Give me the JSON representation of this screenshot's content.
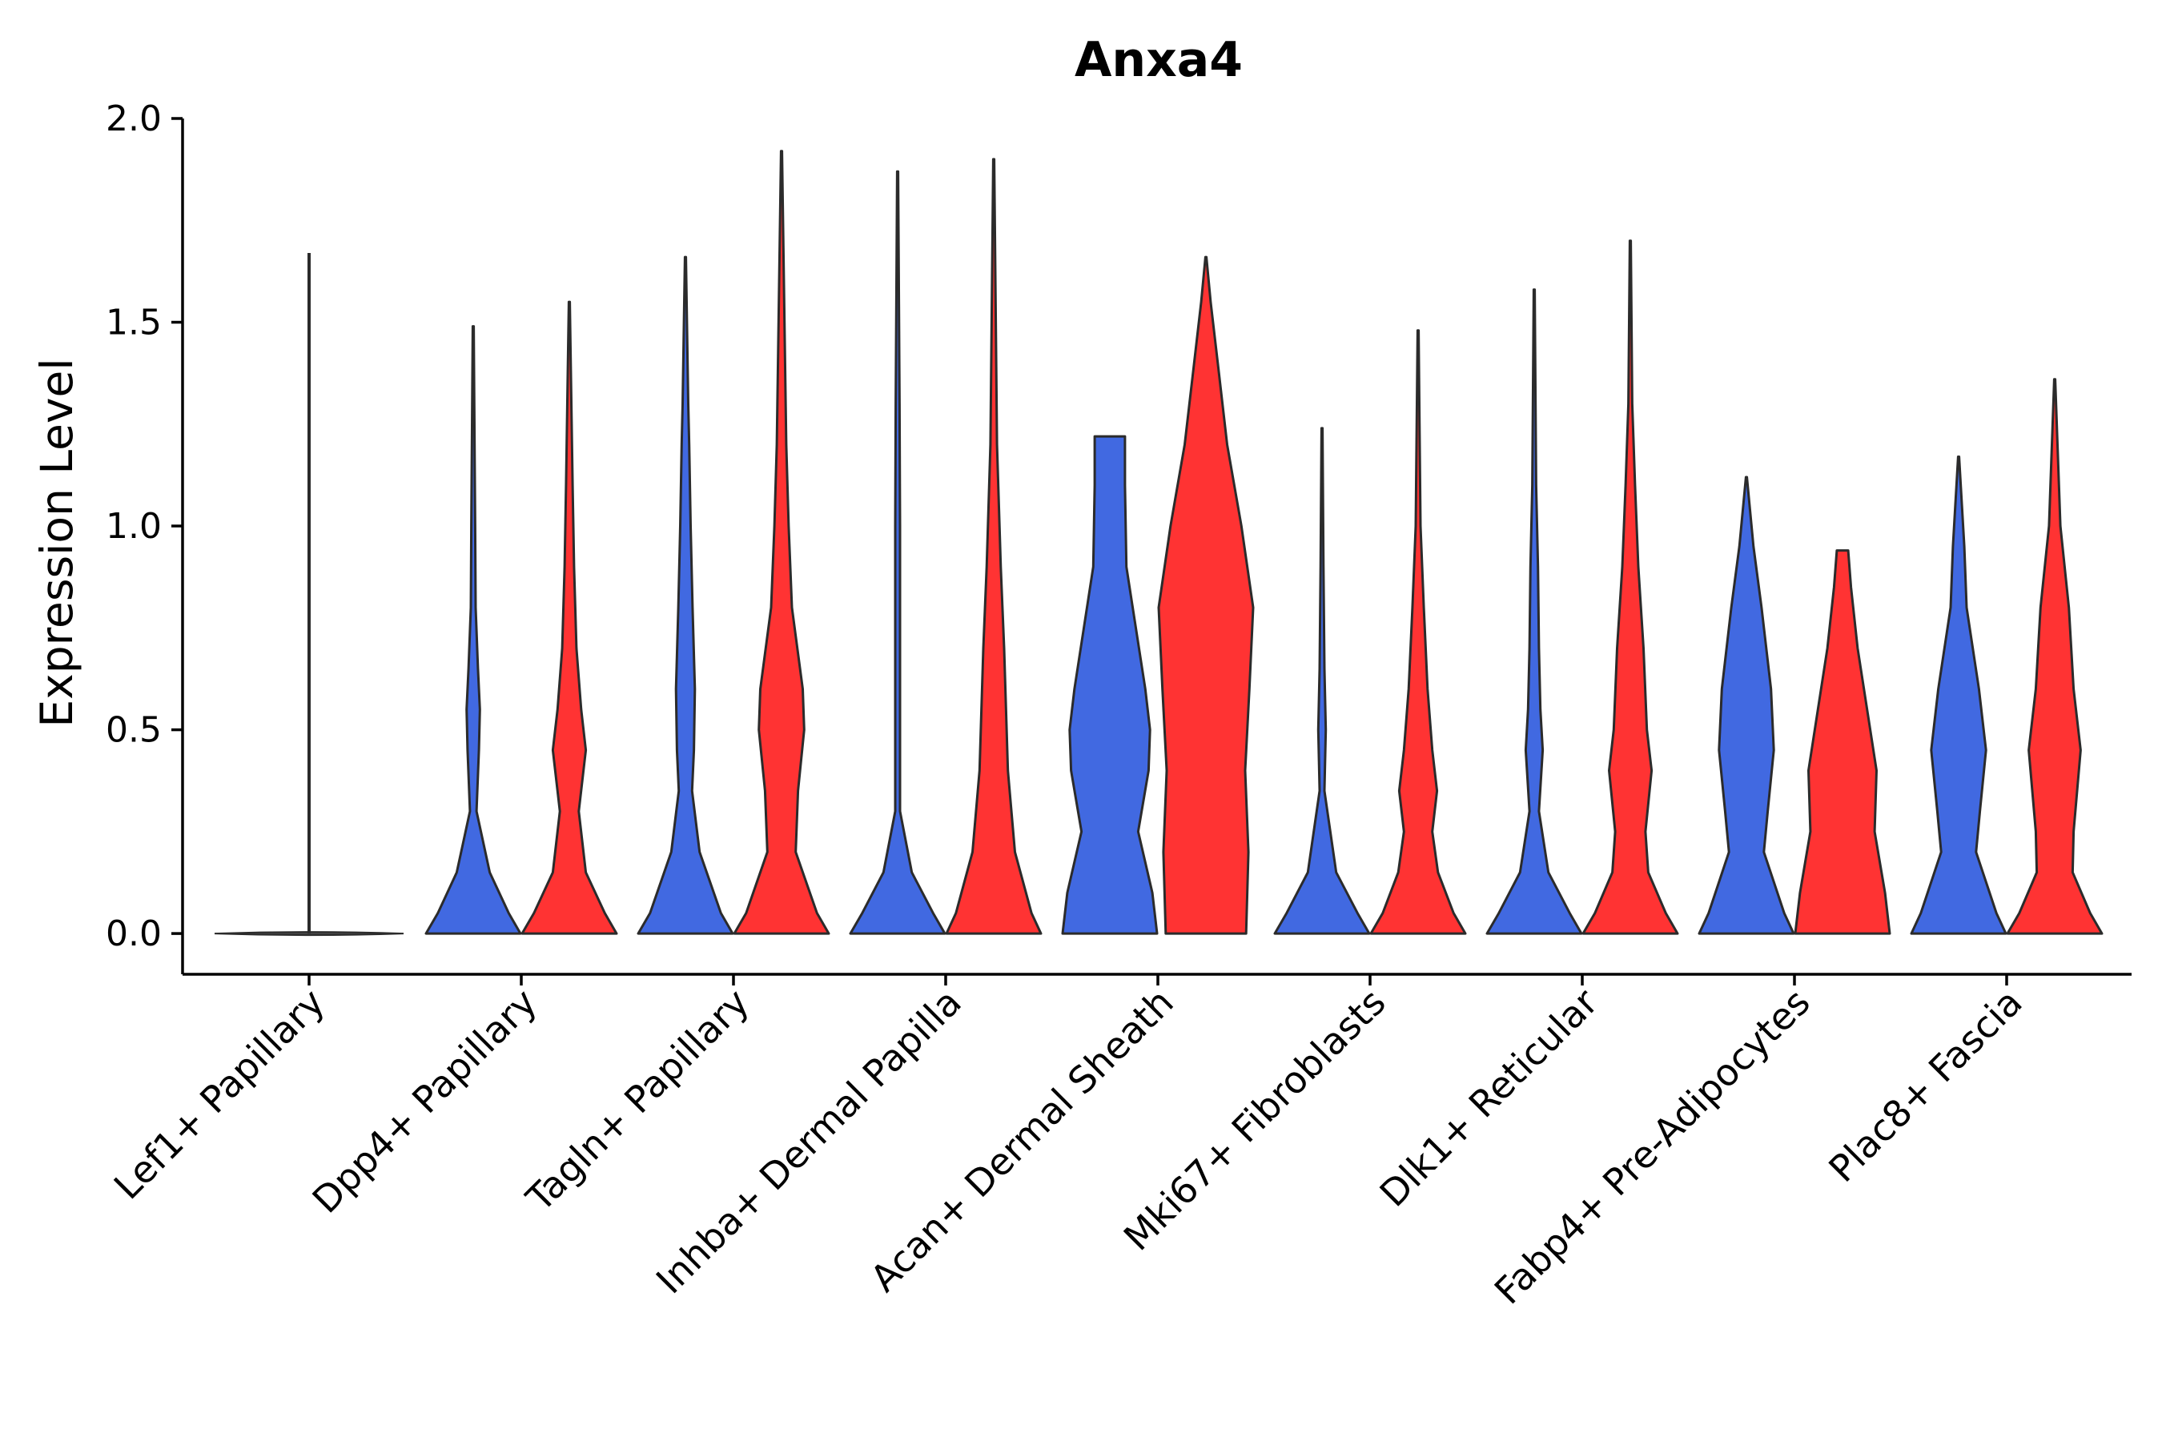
{
  "chart_data": {
    "type": "violin",
    "title": "Anxa4",
    "xlabel": "",
    "ylabel": "Expression Level",
    "ylim": [
      -0.1,
      2.0
    ],
    "yticks": [
      "0.0",
      "0.5",
      "1.0",
      "1.5",
      "2.0"
    ],
    "ytick_values": [
      0,
      0.5,
      1.0,
      1.5,
      2.0
    ],
    "grid": false,
    "colors": {
      "blue": "#4169E1",
      "red": "#FF3333",
      "outline": "#2b2b2b"
    },
    "categories": [
      "Lef1+ Papillary",
      "Dpp4+ Papillary",
      "Tagln+ Papillary",
      "Inhba+ Dermal Papilla",
      "Acan+ Dermal Sheath",
      "Mki67+ Fibroblasts",
      "Dlk1+ Reticular",
      "Fabp4+ Pre-Adipocytes",
      "Plac8+ Fascia"
    ],
    "series": [
      {
        "name": "blue",
        "color": "#4169E1",
        "max": [
          null,
          1.49,
          1.66,
          1.87,
          1.22,
          1.24,
          1.58,
          1.12,
          1.17
        ],
        "profiles": [
          null,
          [
            [
              0,
              1
            ],
            [
              0.05,
              0.75
            ],
            [
              0.15,
              0.35
            ],
            [
              0.3,
              0.07
            ],
            [
              0.45,
              0.12
            ],
            [
              0.55,
              0.14
            ],
            [
              0.65,
              0.1
            ],
            [
              0.8,
              0.05
            ],
            [
              1.0,
              0.04
            ],
            [
              1.49,
              0
            ]
          ],
          [
            [
              0,
              1
            ],
            [
              0.05,
              0.75
            ],
            [
              0.2,
              0.3
            ],
            [
              0.35,
              0.14
            ],
            [
              0.45,
              0.18
            ],
            [
              0.6,
              0.2
            ],
            [
              0.8,
              0.15
            ],
            [
              1.0,
              0.11
            ],
            [
              1.2,
              0.08
            ],
            [
              1.3,
              0.06
            ],
            [
              1.66,
              0
            ]
          ],
          [
            [
              0,
              1
            ],
            [
              0.05,
              0.75
            ],
            [
              0.15,
              0.3
            ],
            [
              0.3,
              0.05
            ],
            [
              0.6,
              0.05
            ],
            [
              1.0,
              0.05
            ],
            [
              1.3,
              0.04
            ],
            [
              1.87,
              0
            ]
          ],
          [
            [
              0,
              1
            ],
            [
              0.1,
              0.9
            ],
            [
              0.25,
              0.6
            ],
            [
              0.4,
              0.82
            ],
            [
              0.5,
              0.85
            ],
            [
              0.6,
              0.75
            ],
            [
              0.9,
              0.35
            ],
            [
              1.1,
              0.32
            ],
            [
              1.22,
              0.32
            ]
          ],
          [
            [
              0,
              1
            ],
            [
              0.05,
              0.75
            ],
            [
              0.15,
              0.3
            ],
            [
              0.35,
              0.05
            ],
            [
              0.5,
              0.08
            ],
            [
              0.65,
              0.05
            ],
            [
              0.9,
              0.03
            ],
            [
              1.24,
              0
            ]
          ],
          [
            [
              0,
              1
            ],
            [
              0.05,
              0.75
            ],
            [
              0.15,
              0.3
            ],
            [
              0.3,
              0.1
            ],
            [
              0.45,
              0.18
            ],
            [
              0.55,
              0.13
            ],
            [
              0.7,
              0.1
            ],
            [
              0.9,
              0.08
            ],
            [
              1.1,
              0.04
            ],
            [
              1.58,
              0
            ]
          ],
          [
            [
              0,
              1
            ],
            [
              0.05,
              0.8
            ],
            [
              0.2,
              0.37
            ],
            [
              0.3,
              0.45
            ],
            [
              0.45,
              0.58
            ],
            [
              0.6,
              0.52
            ],
            [
              0.8,
              0.32
            ],
            [
              0.95,
              0.15
            ],
            [
              1.12,
              0
            ]
          ],
          [
            [
              0,
              1
            ],
            [
              0.05,
              0.8
            ],
            [
              0.2,
              0.37
            ],
            [
              0.3,
              0.45
            ],
            [
              0.45,
              0.58
            ],
            [
              0.6,
              0.43
            ],
            [
              0.8,
              0.17
            ],
            [
              0.95,
              0.12
            ],
            [
              1.17,
              0
            ]
          ]
        ]
      },
      {
        "name": "red",
        "color": "#FF3333",
        "max": [
          null,
          1.55,
          1.92,
          1.9,
          1.66,
          1.48,
          1.7,
          0.94,
          1.36
        ],
        "profiles": [
          null,
          [
            [
              0,
              1
            ],
            [
              0.05,
              0.75
            ],
            [
              0.15,
              0.35
            ],
            [
              0.3,
              0.2
            ],
            [
              0.45,
              0.35
            ],
            [
              0.55,
              0.25
            ],
            [
              0.7,
              0.15
            ],
            [
              0.9,
              0.1
            ],
            [
              1.1,
              0.07
            ],
            [
              1.55,
              0
            ]
          ],
          [
            [
              0,
              1
            ],
            [
              0.05,
              0.75
            ],
            [
              0.2,
              0.3
            ],
            [
              0.35,
              0.35
            ],
            [
              0.5,
              0.48
            ],
            [
              0.6,
              0.45
            ],
            [
              0.8,
              0.22
            ],
            [
              1.0,
              0.15
            ],
            [
              1.2,
              0.1
            ],
            [
              1.92,
              0
            ]
          ],
          [
            [
              0,
              1
            ],
            [
              0.05,
              0.8
            ],
            [
              0.2,
              0.45
            ],
            [
              0.4,
              0.3
            ],
            [
              0.7,
              0.22
            ],
            [
              0.9,
              0.15
            ],
            [
              1.2,
              0.07
            ],
            [
              1.9,
              0
            ]
          ],
          [
            [
              0,
              0.85
            ],
            [
              0.2,
              0.9
            ],
            [
              0.4,
              0.83
            ],
            [
              0.6,
              0.92
            ],
            [
              0.8,
              1.0
            ],
            [
              1.0,
              0.75
            ],
            [
              1.2,
              0.45
            ],
            [
              1.4,
              0.25
            ],
            [
              1.55,
              0.1
            ],
            [
              1.66,
              0
            ]
          ],
          [
            [
              0,
              1
            ],
            [
              0.05,
              0.75
            ],
            [
              0.15,
              0.42
            ],
            [
              0.25,
              0.3
            ],
            [
              0.35,
              0.4
            ],
            [
              0.45,
              0.3
            ],
            [
              0.6,
              0.2
            ],
            [
              0.8,
              0.12
            ],
            [
              1.0,
              0.05
            ],
            [
              1.48,
              0
            ]
          ],
          [
            [
              0,
              1
            ],
            [
              0.05,
              0.75
            ],
            [
              0.15,
              0.38
            ],
            [
              0.25,
              0.32
            ],
            [
              0.4,
              0.45
            ],
            [
              0.5,
              0.35
            ],
            [
              0.7,
              0.28
            ],
            [
              0.9,
              0.17
            ],
            [
              1.1,
              0.1
            ],
            [
              1.3,
              0.04
            ],
            [
              1.7,
              0
            ]
          ],
          [
            [
              0,
              1
            ],
            [
              0.1,
              0.9
            ],
            [
              0.25,
              0.68
            ],
            [
              0.4,
              0.72
            ],
            [
              0.55,
              0.52
            ],
            [
              0.7,
              0.32
            ],
            [
              0.85,
              0.18
            ],
            [
              0.94,
              0.12
            ]
          ],
          [
            [
              0,
              1
            ],
            [
              0.05,
              0.75
            ],
            [
              0.15,
              0.38
            ],
            [
              0.25,
              0.4
            ],
            [
              0.45,
              0.55
            ],
            [
              0.6,
              0.4
            ],
            [
              0.8,
              0.3
            ],
            [
              1.0,
              0.12
            ],
            [
              1.36,
              0
            ]
          ]
        ]
      }
    ],
    "single_group": {
      "category": "Lef1+ Papillary",
      "color": "#444444",
      "max": 1.67
    }
  }
}
